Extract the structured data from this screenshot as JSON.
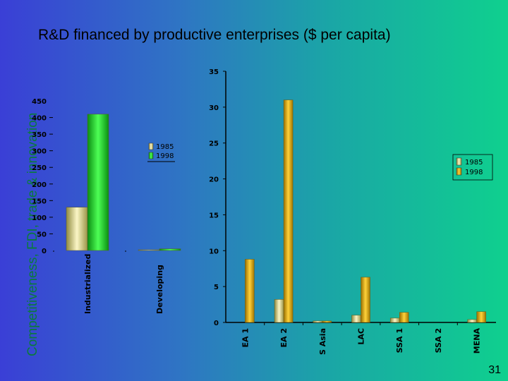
{
  "slide": {
    "side_title": "Competitiveness, FDI, trade & innovation",
    "main_title": "R&D financed by productive enterprises ($ per capita)",
    "page_number": "31"
  },
  "chart_data": [
    {
      "type": "bar",
      "title": "",
      "categories": [
        "Industrialized",
        "Developing"
      ],
      "series": [
        {
          "name": "1985",
          "values": [
            130,
            2
          ],
          "color": "#e9e29a"
        },
        {
          "name": "1998",
          "values": [
            410,
            5
          ],
          "color": "#19d11f"
        }
      ],
      "ylim": [
        0,
        450
      ],
      "yticks": [
        "0",
        "50",
        "100",
        "150",
        "200",
        "250",
        "300",
        "350",
        "400",
        "450"
      ],
      "legend": "inside-right",
      "grid": false
    },
    {
      "type": "bar",
      "title": "",
      "categories": [
        "EA 1",
        "EA 2",
        "S Asia",
        "LAC",
        "SSA 1",
        "SSA 2",
        "MENA"
      ],
      "series": [
        {
          "name": "1985",
          "values": [
            0,
            3.2,
            0.2,
            1.0,
            0.6,
            0,
            0.4
          ],
          "color": "#e9e29a"
        },
        {
          "name": "1998",
          "values": [
            8.8,
            31,
            0.2,
            6.3,
            1.4,
            0,
            1.5
          ],
          "color": "#d9a40a"
        }
      ],
      "ylim": [
        0,
        35
      ],
      "yticks": [
        "0",
        "5",
        "10",
        "15",
        "20",
        "25",
        "30",
        "35"
      ],
      "legend": "top-right",
      "grid": false
    }
  ]
}
